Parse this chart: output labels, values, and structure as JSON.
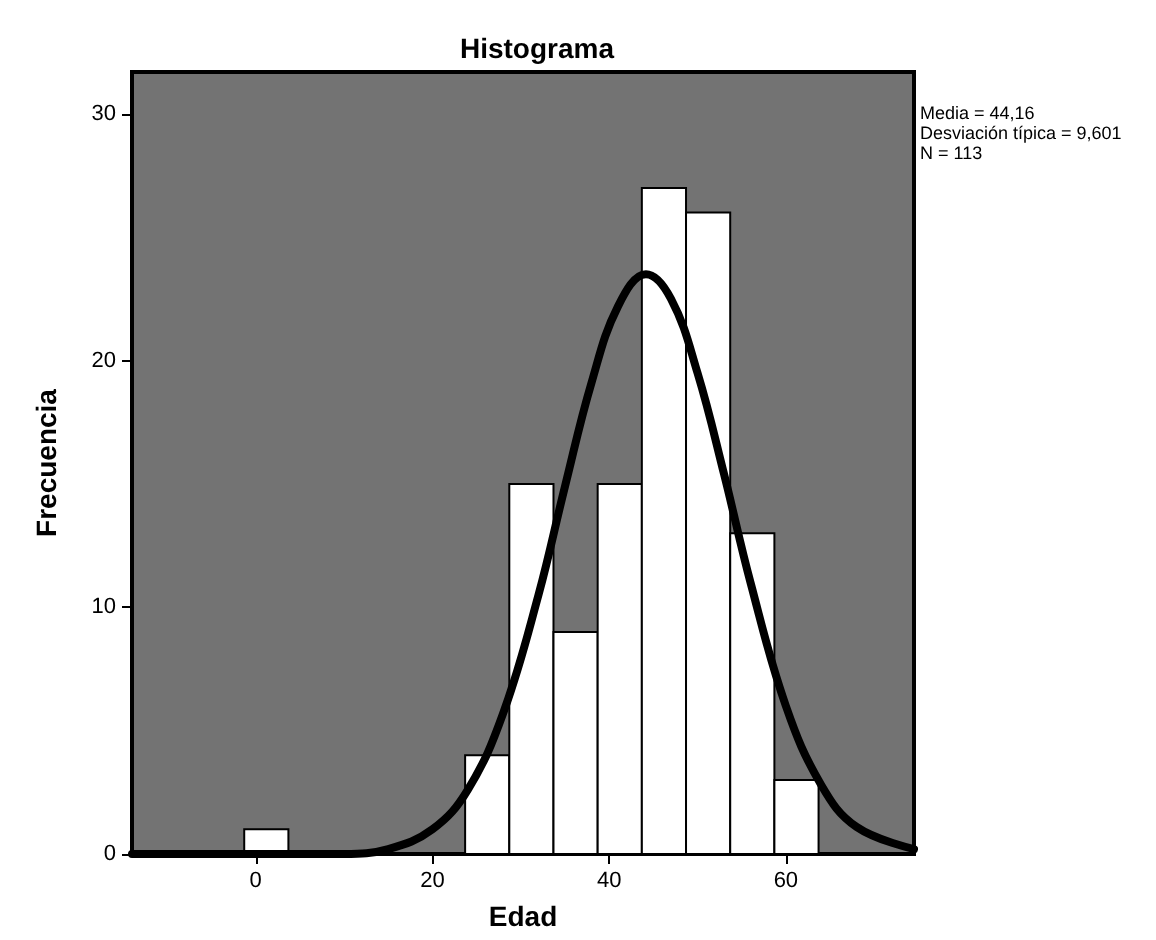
{
  "chart_data": {
    "type": "histogram",
    "title": "Histograma",
    "xlabel": "Edad",
    "ylabel": "Frecuencia",
    "bins": [
      -1.3,
      3.7,
      8.7,
      13.7,
      18.7,
      23.7,
      28.7,
      33.7,
      38.7,
      43.7,
      48.7,
      53.7,
      58.7,
      63.7
    ],
    "values": [
      1,
      0,
      0,
      0,
      0,
      4,
      15,
      9,
      15,
      27,
      26,
      13,
      3
    ],
    "color": "#ffffff",
    "series": [
      {
        "type": "line",
        "color": "#000000",
        "x": [
          -14,
          -10,
          0,
          10,
          15,
          20,
          24,
          28,
          32,
          35,
          38,
          41,
          44.16,
          47,
          50,
          53,
          56,
          60,
          64,
          68,
          74.5
        ],
        "values": [
          0,
          0,
          0,
          0,
          0.2,
          1,
          2.6,
          5.7,
          10.5,
          14.9,
          19.1,
          22.2,
          23.5,
          22.5,
          19.5,
          15.4,
          11,
          6,
          2.8,
          1.1,
          0.2
        ]
      }
    ],
    "xlim": [
      -14,
      74.5
    ],
    "xticks": [
      0,
      20,
      40,
      60
    ],
    "ylim": [
      0,
      31.7
    ],
    "yticks": [
      0,
      10,
      20,
      30
    ],
    "grid": false,
    "marker": "none",
    "line_style": "solid",
    "annotations": [
      "Media = 44,16",
      "Desviación típica = 9,601",
      "N = 113"
    ]
  }
}
